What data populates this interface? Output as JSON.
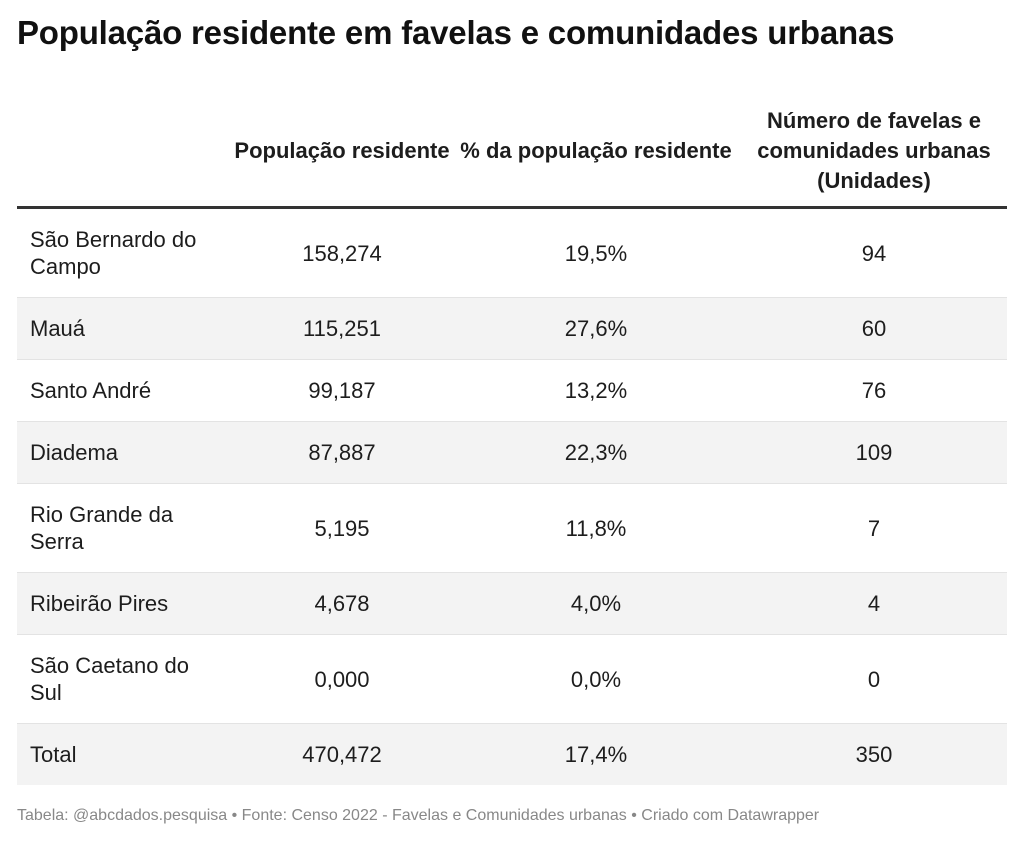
{
  "title": "População residente em favelas e comunidades urbanas",
  "chart_data": {
    "type": "table",
    "title": "População residente em favelas e comunidades urbanas",
    "columns": [
      "",
      "População residente",
      "% da população residente",
      "Número de favelas e comunidades urbanas (Unidades)"
    ],
    "rows": [
      [
        "São Bernardo do Campo",
        "158,274",
        "19,5%",
        "94"
      ],
      [
        "Mauá",
        "115,251",
        "27,6%",
        "60"
      ],
      [
        "Santo André",
        "99,187",
        "13,2%",
        "76"
      ],
      [
        "Diadema",
        "87,887",
        "22,3%",
        "109"
      ],
      [
        "Rio Grande da Serra",
        "5,195",
        "11,8%",
        "7"
      ],
      [
        "Ribeirão Pires",
        "4,678",
        "4,0%",
        "4"
      ],
      [
        "São Caetano do Sul",
        "0,000",
        "0,0%",
        "0"
      ],
      [
        "Total",
        "470,472",
        "17,4%",
        "350"
      ]
    ]
  },
  "footer": "Tabela: @abcdados.pesquisa • Fonte: Censo 2022 - Favelas e Comunidades urbanas • Criado com Datawrapper"
}
